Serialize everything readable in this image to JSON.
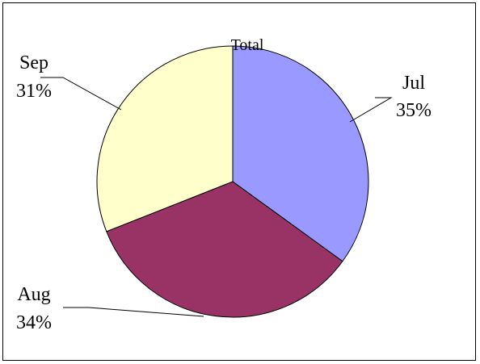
{
  "chart_data": {
    "type": "pie",
    "title": "Total",
    "categories": [
      "Jul",
      "Aug",
      "Sep"
    ],
    "values": [
      35,
      34,
      31
    ],
    "unit": "%",
    "colors": [
      "#9999ff",
      "#993366",
      "#ffffcc"
    ],
    "outline_color": "#000000",
    "start_angle": "12 o'clock",
    "direction": "clockwise",
    "legend": "none",
    "labels": [
      {
        "name": "Jul",
        "percent": "35%"
      },
      {
        "name": "Aug",
        "percent": "34%"
      },
      {
        "name": "Sep",
        "percent": "31%"
      }
    ]
  }
}
